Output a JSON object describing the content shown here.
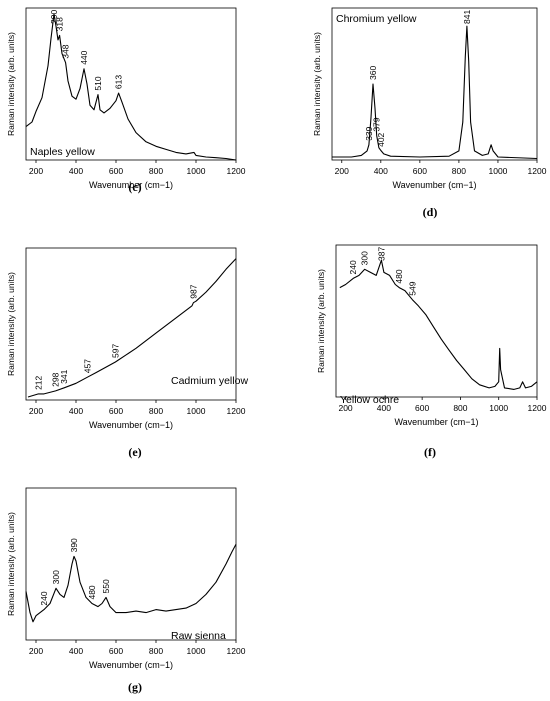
{
  "captions": [
    "(c)",
    "(d)",
    "(e)",
    "(f)",
    "(g)"
  ],
  "chart_data": [
    {
      "type": "line",
      "annotation": "Naples yellow",
      "xlabel": "Wavenumber (cm−1)",
      "ylabel": "Raman intensity (arb. units)",
      "xlim": [
        150,
        1200
      ],
      "ylim": [
        0,
        1
      ],
      "xticks": [
        200,
        400,
        600,
        800,
        1000,
        1200
      ],
      "grid": false,
      "peak_labels": [
        {
          "x": 290,
          "label": "290"
        },
        {
          "x": 318,
          "label": "318"
        },
        {
          "x": 348,
          "label": "348"
        },
        {
          "x": 440,
          "label": "440"
        },
        {
          "x": 510,
          "label": "510"
        },
        {
          "x": 613,
          "label": "613"
        }
      ],
      "points": [
        [
          150,
          0.22
        ],
        [
          180,
          0.25
        ],
        [
          200,
          0.32
        ],
        [
          230,
          0.41
        ],
        [
          260,
          0.62
        ],
        [
          275,
          0.8
        ],
        [
          290,
          0.96
        ],
        [
          300,
          0.88
        ],
        [
          310,
          0.79
        ],
        [
          318,
          0.82
        ],
        [
          330,
          0.7
        ],
        [
          348,
          0.64
        ],
        [
          360,
          0.52
        ],
        [
          380,
          0.42
        ],
        [
          400,
          0.4
        ],
        [
          420,
          0.47
        ],
        [
          440,
          0.6
        ],
        [
          455,
          0.5
        ],
        [
          470,
          0.36
        ],
        [
          490,
          0.33
        ],
        [
          510,
          0.43
        ],
        [
          520,
          0.33
        ],
        [
          540,
          0.31
        ],
        [
          570,
          0.34
        ],
        [
          600,
          0.39
        ],
        [
          613,
          0.44
        ],
        [
          630,
          0.38
        ],
        [
          660,
          0.27
        ],
        [
          700,
          0.18
        ],
        [
          750,
          0.12
        ],
        [
          800,
          0.09
        ],
        [
          850,
          0.07
        ],
        [
          900,
          0.05
        ],
        [
          950,
          0.04
        ],
        [
          990,
          0.05
        ],
        [
          1000,
          0.03
        ],
        [
          1050,
          0.02
        ],
        [
          1100,
          0.015
        ],
        [
          1150,
          0.01
        ],
        [
          1200,
          0.0
        ]
      ]
    },
    {
      "type": "line",
      "annotation": "Chromium yellow",
      "xlabel": "Wavenumber (cm−1)",
      "ylabel": "Raman intensity (arb. units)",
      "xlim": [
        150,
        1200
      ],
      "ylim": [
        0,
        1
      ],
      "xticks": [
        200,
        400,
        600,
        800,
        1000,
        1200
      ],
      "grid": false,
      "peak_labels": [
        {
          "x": 339,
          "label": "339"
        },
        {
          "x": 360,
          "label": "360"
        },
        {
          "x": 379,
          "label": "379"
        },
        {
          "x": 402,
          "label": "402"
        },
        {
          "x": 841,
          "label": "841"
        }
      ],
      "points": [
        [
          150,
          0.02
        ],
        [
          250,
          0.02
        ],
        [
          300,
          0.03
        ],
        [
          330,
          0.06
        ],
        [
          339,
          0.1
        ],
        [
          350,
          0.28
        ],
        [
          360,
          0.5
        ],
        [
          370,
          0.34
        ],
        [
          379,
          0.16
        ],
        [
          390,
          0.08
        ],
        [
          402,
          0.06
        ],
        [
          415,
          0.04
        ],
        [
          450,
          0.025
        ],
        [
          600,
          0.02
        ],
        [
          750,
          0.025
        ],
        [
          800,
          0.06
        ],
        [
          820,
          0.25
        ],
        [
          833,
          0.68
        ],
        [
          841,
          0.88
        ],
        [
          850,
          0.65
        ],
        [
          860,
          0.25
        ],
        [
          880,
          0.06
        ],
        [
          920,
          0.03
        ],
        [
          950,
          0.04
        ],
        [
          965,
          0.1
        ],
        [
          975,
          0.06
        ],
        [
          1000,
          0.02
        ],
        [
          1200,
          0.01
        ]
      ]
    },
    {
      "type": "line",
      "annotation": "Cadmium yellow",
      "xlabel": "Wavenumber (cm−1)",
      "ylabel": "Raman intensity (arb. units)",
      "xlim": [
        150,
        1200
      ],
      "ylim": [
        0,
        1
      ],
      "xticks": [
        200,
        400,
        600,
        800,
        1000,
        1200
      ],
      "grid": false,
      "peak_labels": [
        {
          "x": 212,
          "label": "212"
        },
        {
          "x": 298,
          "label": "298"
        },
        {
          "x": 341,
          "label": "341"
        },
        {
          "x": 457,
          "label": "457"
        },
        {
          "x": 597,
          "label": "597"
        },
        {
          "x": 987,
          "label": "987"
        }
      ],
      "points": [
        [
          160,
          0.02
        ],
        [
          212,
          0.04
        ],
        [
          240,
          0.04
        ],
        [
          298,
          0.06
        ],
        [
          341,
          0.08
        ],
        [
          400,
          0.11
        ],
        [
          457,
          0.15
        ],
        [
          500,
          0.18
        ],
        [
          597,
          0.25
        ],
        [
          700,
          0.34
        ],
        [
          800,
          0.44
        ],
        [
          900,
          0.54
        ],
        [
          980,
          0.62
        ],
        [
          987,
          0.64
        ],
        [
          1000,
          0.65
        ],
        [
          1050,
          0.71
        ],
        [
          1100,
          0.78
        ],
        [
          1150,
          0.86
        ],
        [
          1200,
          0.93
        ]
      ]
    },
    {
      "type": "line",
      "annotation": "Yellow ochre",
      "xlabel": "Wavenumber (cm−1)",
      "ylabel": "Raman intensity (arb. units)",
      "xlim": [
        150,
        1200
      ],
      "ylim": [
        0,
        1
      ],
      "xticks": [
        200,
        400,
        600,
        800,
        1000,
        1200
      ],
      "grid": false,
      "peak_labels": [
        {
          "x": 240,
          "label": "240"
        },
        {
          "x": 300,
          "label": "300"
        },
        {
          "x": 387,
          "label": "387"
        },
        {
          "x": 480,
          "label": "480"
        },
        {
          "x": 549,
          "label": "549"
        }
      ],
      "points": [
        [
          170,
          0.72
        ],
        [
          200,
          0.74
        ],
        [
          240,
          0.78
        ],
        [
          270,
          0.8
        ],
        [
          300,
          0.84
        ],
        [
          330,
          0.82
        ],
        [
          360,
          0.8
        ],
        [
          387,
          0.9
        ],
        [
          400,
          0.82
        ],
        [
          430,
          0.8
        ],
        [
          460,
          0.74
        ],
        [
          480,
          0.72
        ],
        [
          510,
          0.7
        ],
        [
          549,
          0.64
        ],
        [
          580,
          0.6
        ],
        [
          620,
          0.54
        ],
        [
          660,
          0.46
        ],
        [
          700,
          0.38
        ],
        [
          740,
          0.31
        ],
        [
          780,
          0.24
        ],
        [
          820,
          0.18
        ],
        [
          860,
          0.12
        ],
        [
          900,
          0.08
        ],
        [
          950,
          0.06
        ],
        [
          980,
          0.07
        ],
        [
          1000,
          0.1
        ],
        [
          1005,
          0.32
        ],
        [
          1010,
          0.18
        ],
        [
          1030,
          0.06
        ],
        [
          1080,
          0.05
        ],
        [
          1110,
          0.06
        ],
        [
          1125,
          0.1
        ],
        [
          1140,
          0.06
        ],
        [
          1170,
          0.07
        ],
        [
          1200,
          0.1
        ]
      ]
    },
    {
      "type": "line",
      "annotation": "Raw sienna",
      "xlabel": "Wavenumber (cm−1)",
      "ylabel": "Raman intensity (arb. units)",
      "xlim": [
        150,
        1200
      ],
      "ylim": [
        0,
        1
      ],
      "xticks": [
        200,
        400,
        600,
        800,
        1000,
        1200
      ],
      "grid": false,
      "peak_labels": [
        {
          "x": 240,
          "label": "240"
        },
        {
          "x": 300,
          "label": "300"
        },
        {
          "x": 390,
          "label": "390"
        },
        {
          "x": 480,
          "label": "480"
        },
        {
          "x": 550,
          "label": "550"
        }
      ],
      "points": [
        [
          150,
          0.32
        ],
        [
          170,
          0.18
        ],
        [
          185,
          0.12
        ],
        [
          200,
          0.16
        ],
        [
          240,
          0.2
        ],
        [
          270,
          0.24
        ],
        [
          300,
          0.34
        ],
        [
          320,
          0.3
        ],
        [
          340,
          0.28
        ],
        [
          360,
          0.36
        ],
        [
          380,
          0.5
        ],
        [
          390,
          0.55
        ],
        [
          400,
          0.52
        ],
        [
          420,
          0.38
        ],
        [
          450,
          0.28
        ],
        [
          480,
          0.24
        ],
        [
          510,
          0.22
        ],
        [
          530,
          0.24
        ],
        [
          550,
          0.28
        ],
        [
          570,
          0.22
        ],
        [
          600,
          0.18
        ],
        [
          650,
          0.18
        ],
        [
          700,
          0.19
        ],
        [
          750,
          0.18
        ],
        [
          800,
          0.2
        ],
        [
          850,
          0.19
        ],
        [
          900,
          0.2
        ],
        [
          950,
          0.21
        ],
        [
          1000,
          0.24
        ],
        [
          1050,
          0.3
        ],
        [
          1100,
          0.38
        ],
        [
          1150,
          0.5
        ],
        [
          1180,
          0.58
        ],
        [
          1200,
          0.63
        ]
      ]
    }
  ]
}
